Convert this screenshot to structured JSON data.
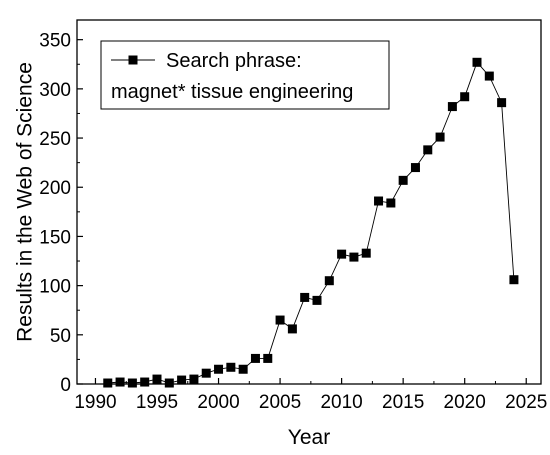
{
  "chart_data": {
    "type": "line",
    "xlabel": "Year",
    "ylabel": "Results in the Web of Science",
    "xlim": [
      1988.5,
      2026.2
    ],
    "ylim": [
      0,
      370
    ],
    "xticks": [
      1990,
      1995,
      2000,
      2005,
      2010,
      2015,
      2020,
      2025
    ],
    "yticks": [
      0,
      50,
      100,
      150,
      200,
      250,
      300,
      350
    ],
    "grid": false,
    "legend_position": "top-left",
    "marker": "square",
    "color": "#000000",
    "series": [
      {
        "name_line1": "Search phrase:",
        "name_line2": "magnet* tissue engineering",
        "x": [
          1991,
          1992,
          1993,
          1994,
          1995,
          1996,
          1997,
          1998,
          1999,
          2000,
          2001,
          2002,
          2003,
          2004,
          2005,
          2006,
          2007,
          2008,
          2009,
          2010,
          2011,
          2012,
          2013,
          2014,
          2015,
          2016,
          2017,
          2018,
          2019,
          2020,
          2021,
          2022,
          2023,
          2024
        ],
        "y": [
          1,
          2,
          1,
          2,
          5,
          1,
          4,
          5,
          11,
          15,
          17,
          15,
          26,
          26,
          65,
          56,
          88,
          85,
          105,
          132,
          129,
          133,
          186,
          184,
          207,
          220,
          238,
          251,
          282,
          292,
          327,
          313,
          286,
          106
        ]
      }
    ]
  }
}
